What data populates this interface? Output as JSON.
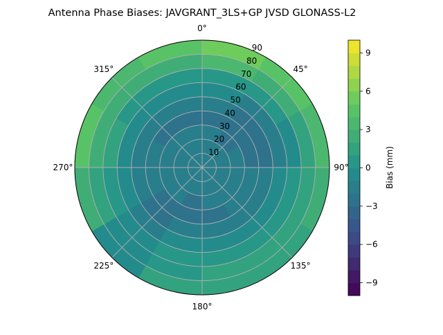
{
  "chart_data": {
    "type": "heatmap",
    "subtype": "polar-contour",
    "title": "Antenna Phase Biases: JAVGRANT_3LS+GP JVSD GLONASS-L2",
    "angle_tick_labels": [
      "0°",
      "45°",
      "90°",
      "135°",
      "180°",
      "225°",
      "270°",
      "315°"
    ],
    "radial_tick_labels": [
      "10",
      "20",
      "30",
      "40",
      "50",
      "60",
      "70",
      "80",
      "90"
    ],
    "radial_range": [
      0,
      90
    ],
    "zenith_bins": [
      [
        0,
        10
      ],
      [
        10,
        20
      ],
      [
        20,
        30
      ],
      [
        30,
        40
      ],
      [
        40,
        50
      ],
      [
        50,
        60
      ],
      [
        60,
        70
      ],
      [
        70,
        80
      ],
      [
        80,
        90
      ]
    ],
    "azimuth_bin_centers": [
      15,
      45,
      75,
      105,
      135,
      165,
      195,
      225,
      255,
      285,
      315,
      345
    ],
    "values": [
      [
        -2,
        -2,
        -2,
        -2,
        -2,
        -2,
        -2,
        -2,
        -2,
        -2,
        -2,
        -2
      ],
      [
        -2,
        -2,
        -2,
        -2,
        -2,
        -2,
        -2,
        -2,
        -2,
        -2,
        -2,
        -2
      ],
      [
        -2,
        -3,
        -2,
        -2,
        -2,
        -2,
        -3,
        -2,
        -2,
        -2,
        -2,
        -2
      ],
      [
        -3,
        -3,
        -3,
        -2,
        -2,
        -3,
        -3,
        -3,
        -2,
        -2,
        -3,
        -3
      ],
      [
        -2,
        -3,
        -3,
        -2,
        -2,
        -2,
        -2,
        -3,
        -2,
        -2,
        -2,
        -2
      ],
      [
        -1,
        -2,
        -2,
        -1,
        -1,
        -1,
        -1,
        -2,
        -1,
        -1,
        -1,
        -1
      ],
      [
        0,
        0,
        -1,
        0,
        0,
        0,
        0,
        -1,
        0,
        1,
        0,
        0
      ],
      [
        3,
        2,
        1,
        1,
        1,
        1,
        0,
        -1,
        1,
        2,
        2,
        2
      ],
      [
        5,
        4,
        3,
        2,
        1,
        1,
        1,
        -1,
        2,
        4,
        3,
        4
      ]
    ],
    "colorbar": {
      "label": "Bias (mm)",
      "range": [
        -10,
        10
      ],
      "levels_step": 1,
      "tick_labels": [
        "−9",
        "−6",
        "−3",
        "0",
        "3",
        "6",
        "9"
      ],
      "colormap": "viridis",
      "colormap_stops": [
        "#440154",
        "#3b528b",
        "#21918c",
        "#5ec962",
        "#fde725"
      ]
    },
    "grid": true,
    "grid_color": "#b0b0b0"
  }
}
